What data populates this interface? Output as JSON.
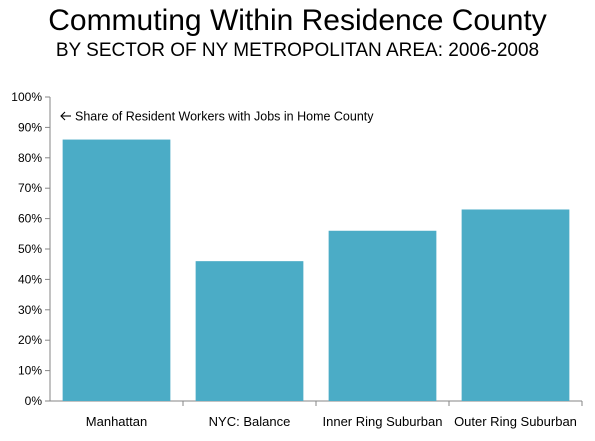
{
  "title": "Commuting Within Residence County",
  "subtitle": "BY SECTOR OF NY METROPOLITAN AREA: 2006-2008",
  "colors": {
    "bar": "#4BACC6",
    "axis": "#868686",
    "grid": "#868686"
  },
  "chart_data": {
    "type": "bar",
    "title": "Commuting Within Residence County",
    "subtitle": "BY SECTOR OF NY METROPOLITAN AREA: 2006-2008",
    "categories": [
      "Manhattan",
      "NYC: Balance",
      "Inner Ring Suburban",
      "Outer Ring Suburban"
    ],
    "series": [
      {
        "name": "Share of Resident Workers with Jobs in Home County",
        "values": [
          0.86,
          0.46,
          0.56,
          0.63
        ]
      }
    ],
    "annotation": "Share of Resident Workers with Jobs in Home County",
    "ylim": [
      0,
      1
    ],
    "yticks": [
      "0%",
      "10%",
      "20%",
      "30%",
      "40%",
      "50%",
      "60%",
      "70%",
      "80%",
      "90%",
      "100%"
    ],
    "xlabel": "",
    "ylabel": "",
    "grid": false,
    "legend": "none"
  }
}
